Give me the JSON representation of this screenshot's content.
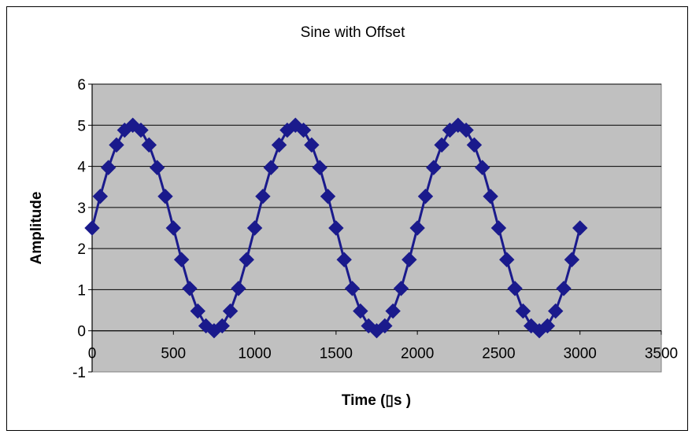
{
  "chart_data": {
    "type": "scatter",
    "title": "Sine    with    Offset",
    "xlabel": "Time    (▯s )",
    "ylabel": "Amplitude",
    "xlim": [
      0,
      3500
    ],
    "ylim": [
      -1,
      6
    ],
    "xticks": [
      "0",
      "500",
      "1000",
      "1500",
      "2000",
      "2500",
      "3000",
      "3500"
    ],
    "yticks": [
      "-1",
      "0",
      "1",
      "2",
      "3",
      "4",
      "5",
      "6"
    ],
    "grid": "horizontal",
    "legend": "none",
    "colors": {
      "series": "#1a1a8c",
      "plot_bg": "#c0c0c0",
      "grid": "#000000"
    },
    "series": [
      {
        "marker": "diamond",
        "x": [
          0,
          50,
          100,
          150,
          200,
          250,
          300,
          350,
          400,
          450,
          500,
          550,
          600,
          650,
          700,
          750,
          800,
          850,
          900,
          950,
          1000,
          1050,
          1100,
          1150,
          1200,
          1250,
          1300,
          1350,
          1400,
          1450,
          1500,
          1550,
          1600,
          1650,
          1700,
          1750,
          1800,
          1850,
          1900,
          1950,
          2000,
          2050,
          2100,
          2150,
          2200,
          2250,
          2300,
          2350,
          2400,
          2450,
          2500,
          2550,
          2600,
          2650,
          2700,
          2750,
          2800,
          2850,
          2900,
          2950,
          3000
        ],
        "y": [
          2.5,
          3.27,
          3.97,
          4.52,
          4.88,
          5.0,
          4.88,
          4.52,
          3.97,
          3.27,
          2.5,
          1.73,
          1.03,
          0.48,
          0.12,
          0.0,
          0.12,
          0.48,
          1.03,
          1.73,
          2.5,
          3.27,
          3.97,
          4.52,
          4.88,
          5.0,
          4.88,
          4.52,
          3.97,
          3.27,
          2.5,
          1.73,
          1.03,
          0.48,
          0.12,
          0.0,
          0.12,
          0.48,
          1.03,
          1.73,
          2.5,
          3.27,
          3.97,
          4.52,
          4.88,
          5.0,
          4.88,
          4.52,
          3.97,
          3.27,
          2.5,
          1.73,
          1.03,
          0.48,
          0.12,
          0.0,
          0.12,
          0.48,
          1.03,
          1.73,
          2.5
        ]
      }
    ]
  }
}
